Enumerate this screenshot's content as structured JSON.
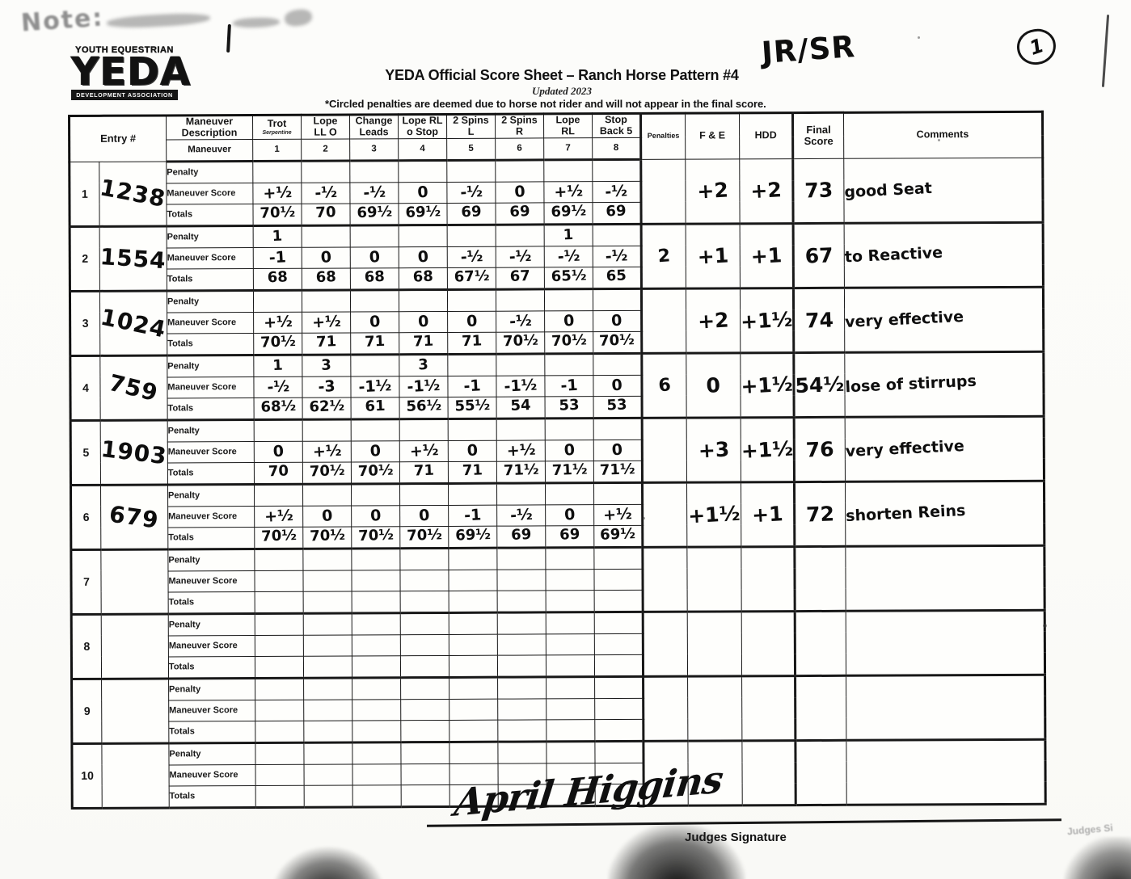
{
  "page": {
    "handwritten_note_top_left": "Note:",
    "division_mark": "JR/SR",
    "page_number": "1"
  },
  "logo": {
    "top": "YOUTH EQUESTRIAN",
    "main": "YEDA",
    "bottom": "DEVELOPMENT ASSOCIATION"
  },
  "header": {
    "title": "YEDA Official Score Sheet – Ranch Horse Pattern #4",
    "updated": "Updated 2023",
    "footnote": "*Circled penalties are deemed due to horse not rider and will not appear in the final score."
  },
  "table": {
    "entry_header": "Entry #",
    "description_header": "Maneuver Description",
    "maneuver_row_label": "Maneuver",
    "sub_labels": {
      "penalty": "Penalty",
      "score": "Maneuver Score",
      "totals": "Totals"
    },
    "maneuver_columns": [
      {
        "top": "Trot",
        "bottom": "Serpentine",
        "num": "1"
      },
      {
        "top": "Lope",
        "bottom": "LL O",
        "num": "2"
      },
      {
        "top": "Change",
        "bottom": "Leads",
        "num": "3"
      },
      {
        "top": "Lope RL",
        "bottom": "o Stop",
        "num": "4"
      },
      {
        "top": "2 Spins",
        "bottom": "L",
        "num": "5"
      },
      {
        "top": "2 Spins",
        "bottom": "R",
        "num": "6"
      },
      {
        "top": "Lope",
        "bottom": "RL",
        "num": "7"
      },
      {
        "top": "Stop",
        "bottom": "Back 5",
        "num": "8"
      }
    ],
    "penalties_header": "Penalties",
    "fe_header": "F & E",
    "hdd_header": "HDD",
    "final_header": "Final Score",
    "comments_header": "Comments",
    "rows": [
      {
        "num": "1",
        "entry": "1238",
        "penalty": [
          "",
          "",
          "",
          "",
          "",
          "",
          "",
          ""
        ],
        "scores": [
          "+½",
          "-½",
          "-½",
          "0",
          "-½",
          "0",
          "+½",
          "-½"
        ],
        "totals": [
          "70½",
          "70",
          "69½",
          "69½",
          "69",
          "69",
          "69½",
          "69"
        ],
        "penalties": "",
        "fe": "+2",
        "hdd": "+2",
        "final": "73",
        "comment": "good Seat"
      },
      {
        "num": "2",
        "entry": "1554",
        "penalty": [
          "1",
          "",
          "",
          "",
          "",
          "",
          "1",
          ""
        ],
        "scores": [
          "-1",
          "0",
          "0",
          "0",
          "-½",
          "-½",
          "-½",
          "-½"
        ],
        "totals": [
          "68",
          "68",
          "68",
          "68",
          "67½",
          "67",
          "65½",
          "65"
        ],
        "penalties": "2",
        "fe": "+1",
        "hdd": "+1",
        "final": "67",
        "comment": "to Reactive"
      },
      {
        "num": "3",
        "entry": "1024",
        "penalty": [
          "",
          "",
          "",
          "",
          "",
          "",
          "",
          ""
        ],
        "scores": [
          "+½",
          "+½",
          "0",
          "0",
          "0",
          "-½",
          "0",
          "0"
        ],
        "totals": [
          "70½",
          "71",
          "71",
          "71",
          "71",
          "70½",
          "70½",
          "70½"
        ],
        "penalties": "",
        "fe": "+2",
        "hdd": "+1½",
        "final": "74",
        "comment": "very effective"
      },
      {
        "num": "4",
        "entry": "759",
        "penalty": [
          "1",
          "3",
          "",
          "3",
          "",
          "",
          "",
          ""
        ],
        "scores": [
          "-½",
          "-3",
          "-1½",
          "-1½",
          "-1",
          "-1½",
          "-1",
          "0"
        ],
        "totals": [
          "68½",
          "62½",
          "61",
          "56½",
          "55½",
          "54",
          "53",
          "53"
        ],
        "penalties": "6",
        "fe": "0",
        "hdd": "+1½",
        "final": "54½",
        "comment": "lose of stirrups"
      },
      {
        "num": "5",
        "entry": "1903",
        "penalty": [
          "",
          "",
          "",
          "",
          "",
          "",
          "",
          ""
        ],
        "scores": [
          "0",
          "+½",
          "0",
          "+½",
          "0",
          "+½",
          "0",
          "0"
        ],
        "totals": [
          "70",
          "70½",
          "70½",
          "71",
          "71",
          "71½",
          "71½",
          "71½"
        ],
        "penalties": "",
        "fe": "+3",
        "hdd": "+1½",
        "final": "76",
        "comment": "very effective"
      },
      {
        "num": "6",
        "entry": "679",
        "penalty": [
          "",
          "",
          "",
          "",
          "",
          "",
          "",
          ""
        ],
        "scores": [
          "+½",
          "0",
          "0",
          "0",
          "-1",
          "-½",
          "0",
          "+½"
        ],
        "totals": [
          "70½",
          "70½",
          "70½",
          "70½",
          "69½",
          "69",
          "69",
          "69½"
        ],
        "penalties": "",
        "fe": "+1½",
        "hdd": "+1",
        "final": "72",
        "comment": "shorten Reins"
      },
      {
        "num": "7",
        "entry": "",
        "penalty": [
          "",
          "",
          "",
          "",
          "",
          "",
          "",
          ""
        ],
        "scores": [
          "",
          "",
          "",
          "",
          "",
          "",
          "",
          ""
        ],
        "totals": [
          "",
          "",
          "",
          "",
          "",
          "",
          "",
          ""
        ],
        "penalties": "",
        "fe": "",
        "hdd": "",
        "final": "",
        "comment": ""
      },
      {
        "num": "8",
        "entry": "",
        "penalty": [
          "",
          "",
          "",
          "",
          "",
          "",
          "",
          ""
        ],
        "scores": [
          "",
          "",
          "",
          "",
          "",
          "",
          "",
          ""
        ],
        "totals": [
          "",
          "",
          "",
          "",
          "",
          "",
          "",
          ""
        ],
        "penalties": "",
        "fe": "",
        "hdd": "",
        "final": "",
        "comment": ""
      },
      {
        "num": "9",
        "entry": "",
        "penalty": [
          "",
          "",
          "",
          "",
          "",
          "",
          "",
          ""
        ],
        "scores": [
          "",
          "",
          "",
          "",
          "",
          "",
          "",
          ""
        ],
        "totals": [
          "",
          "",
          "",
          "",
          "",
          "",
          "",
          ""
        ],
        "penalties": "",
        "fe": "",
        "hdd": "",
        "final": "",
        "comment": ""
      },
      {
        "num": "10",
        "entry": "",
        "penalty": [
          "",
          "",
          "",
          "",
          "",
          "",
          "",
          ""
        ],
        "scores": [
          "",
          "",
          "",
          "",
          "",
          "",
          "",
          ""
        ],
        "totals": [
          "",
          "",
          "",
          "",
          "",
          "",
          "",
          ""
        ],
        "penalties": "",
        "fe": "",
        "hdd": "",
        "final": "",
        "comment": ""
      }
    ]
  },
  "footer": {
    "signature": "April Higgins",
    "signature_label": "Judges Signature",
    "bleed_text": "Judges Si"
  }
}
